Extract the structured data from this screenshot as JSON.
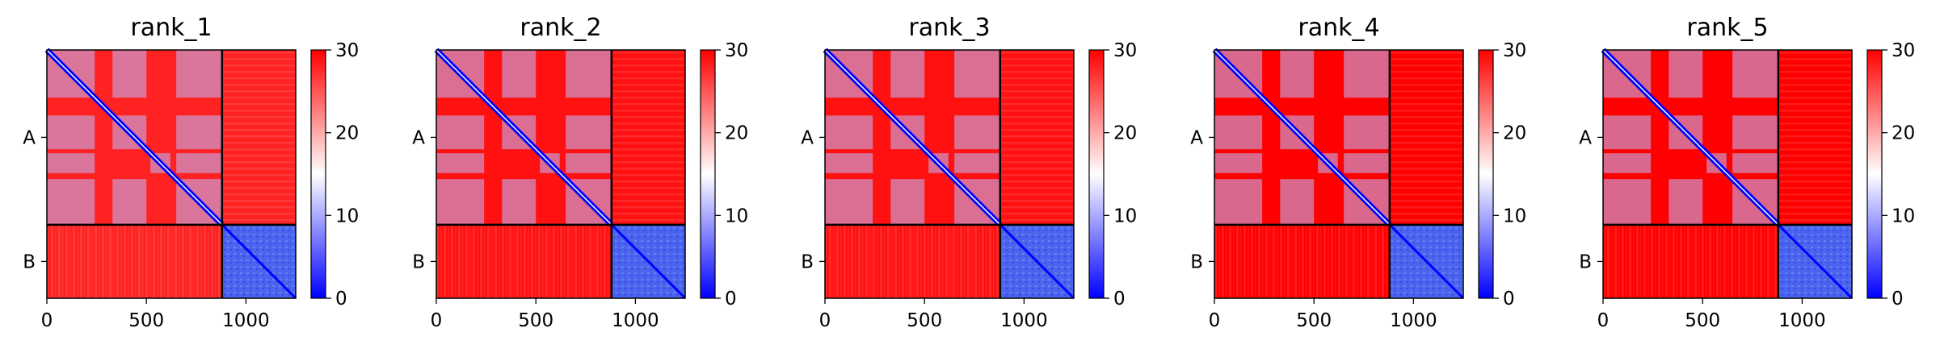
{
  "chart_data": {
    "type": "heatmap",
    "layout": "5 panels in a row, each with its own colorbar on the right",
    "colormap": {
      "name": "bwr",
      "low": "#0000ff",
      "mid": "#ffffff",
      "high": "#ff0000"
    },
    "colorbar": {
      "range": [
        0,
        30
      ],
      "ticks": [
        "0",
        "10",
        "20",
        "30"
      ]
    },
    "x_axis": {
      "range": [
        0,
        1250
      ],
      "ticks": [
        "0",
        "500",
        "1000"
      ]
    },
    "y_axis": {
      "categories": [
        "A",
        "B"
      ],
      "category_spans": [
        [
          0,
          880
        ],
        [
          880,
          1250
        ]
      ]
    },
    "chain_boundary": 880,
    "panels": [
      {
        "title": "rank_1",
        "mean_interchain_value": 28
      },
      {
        "title": "rank_2",
        "mean_interchain_value": 29
      },
      {
        "title": "rank_3",
        "mean_interchain_value": 29
      },
      {
        "title": "rank_4",
        "mean_interchain_value": 30
      },
      {
        "title": "rank_5",
        "mean_interchain_value": 30
      }
    ],
    "intra_chain_A_pattern": "blue diagonal with blue blocks at residues ~0-240, 330-500, 520-620, 650-880; red elsewhere",
    "intra_chain_B_value": 6,
    "grid": false
  }
}
